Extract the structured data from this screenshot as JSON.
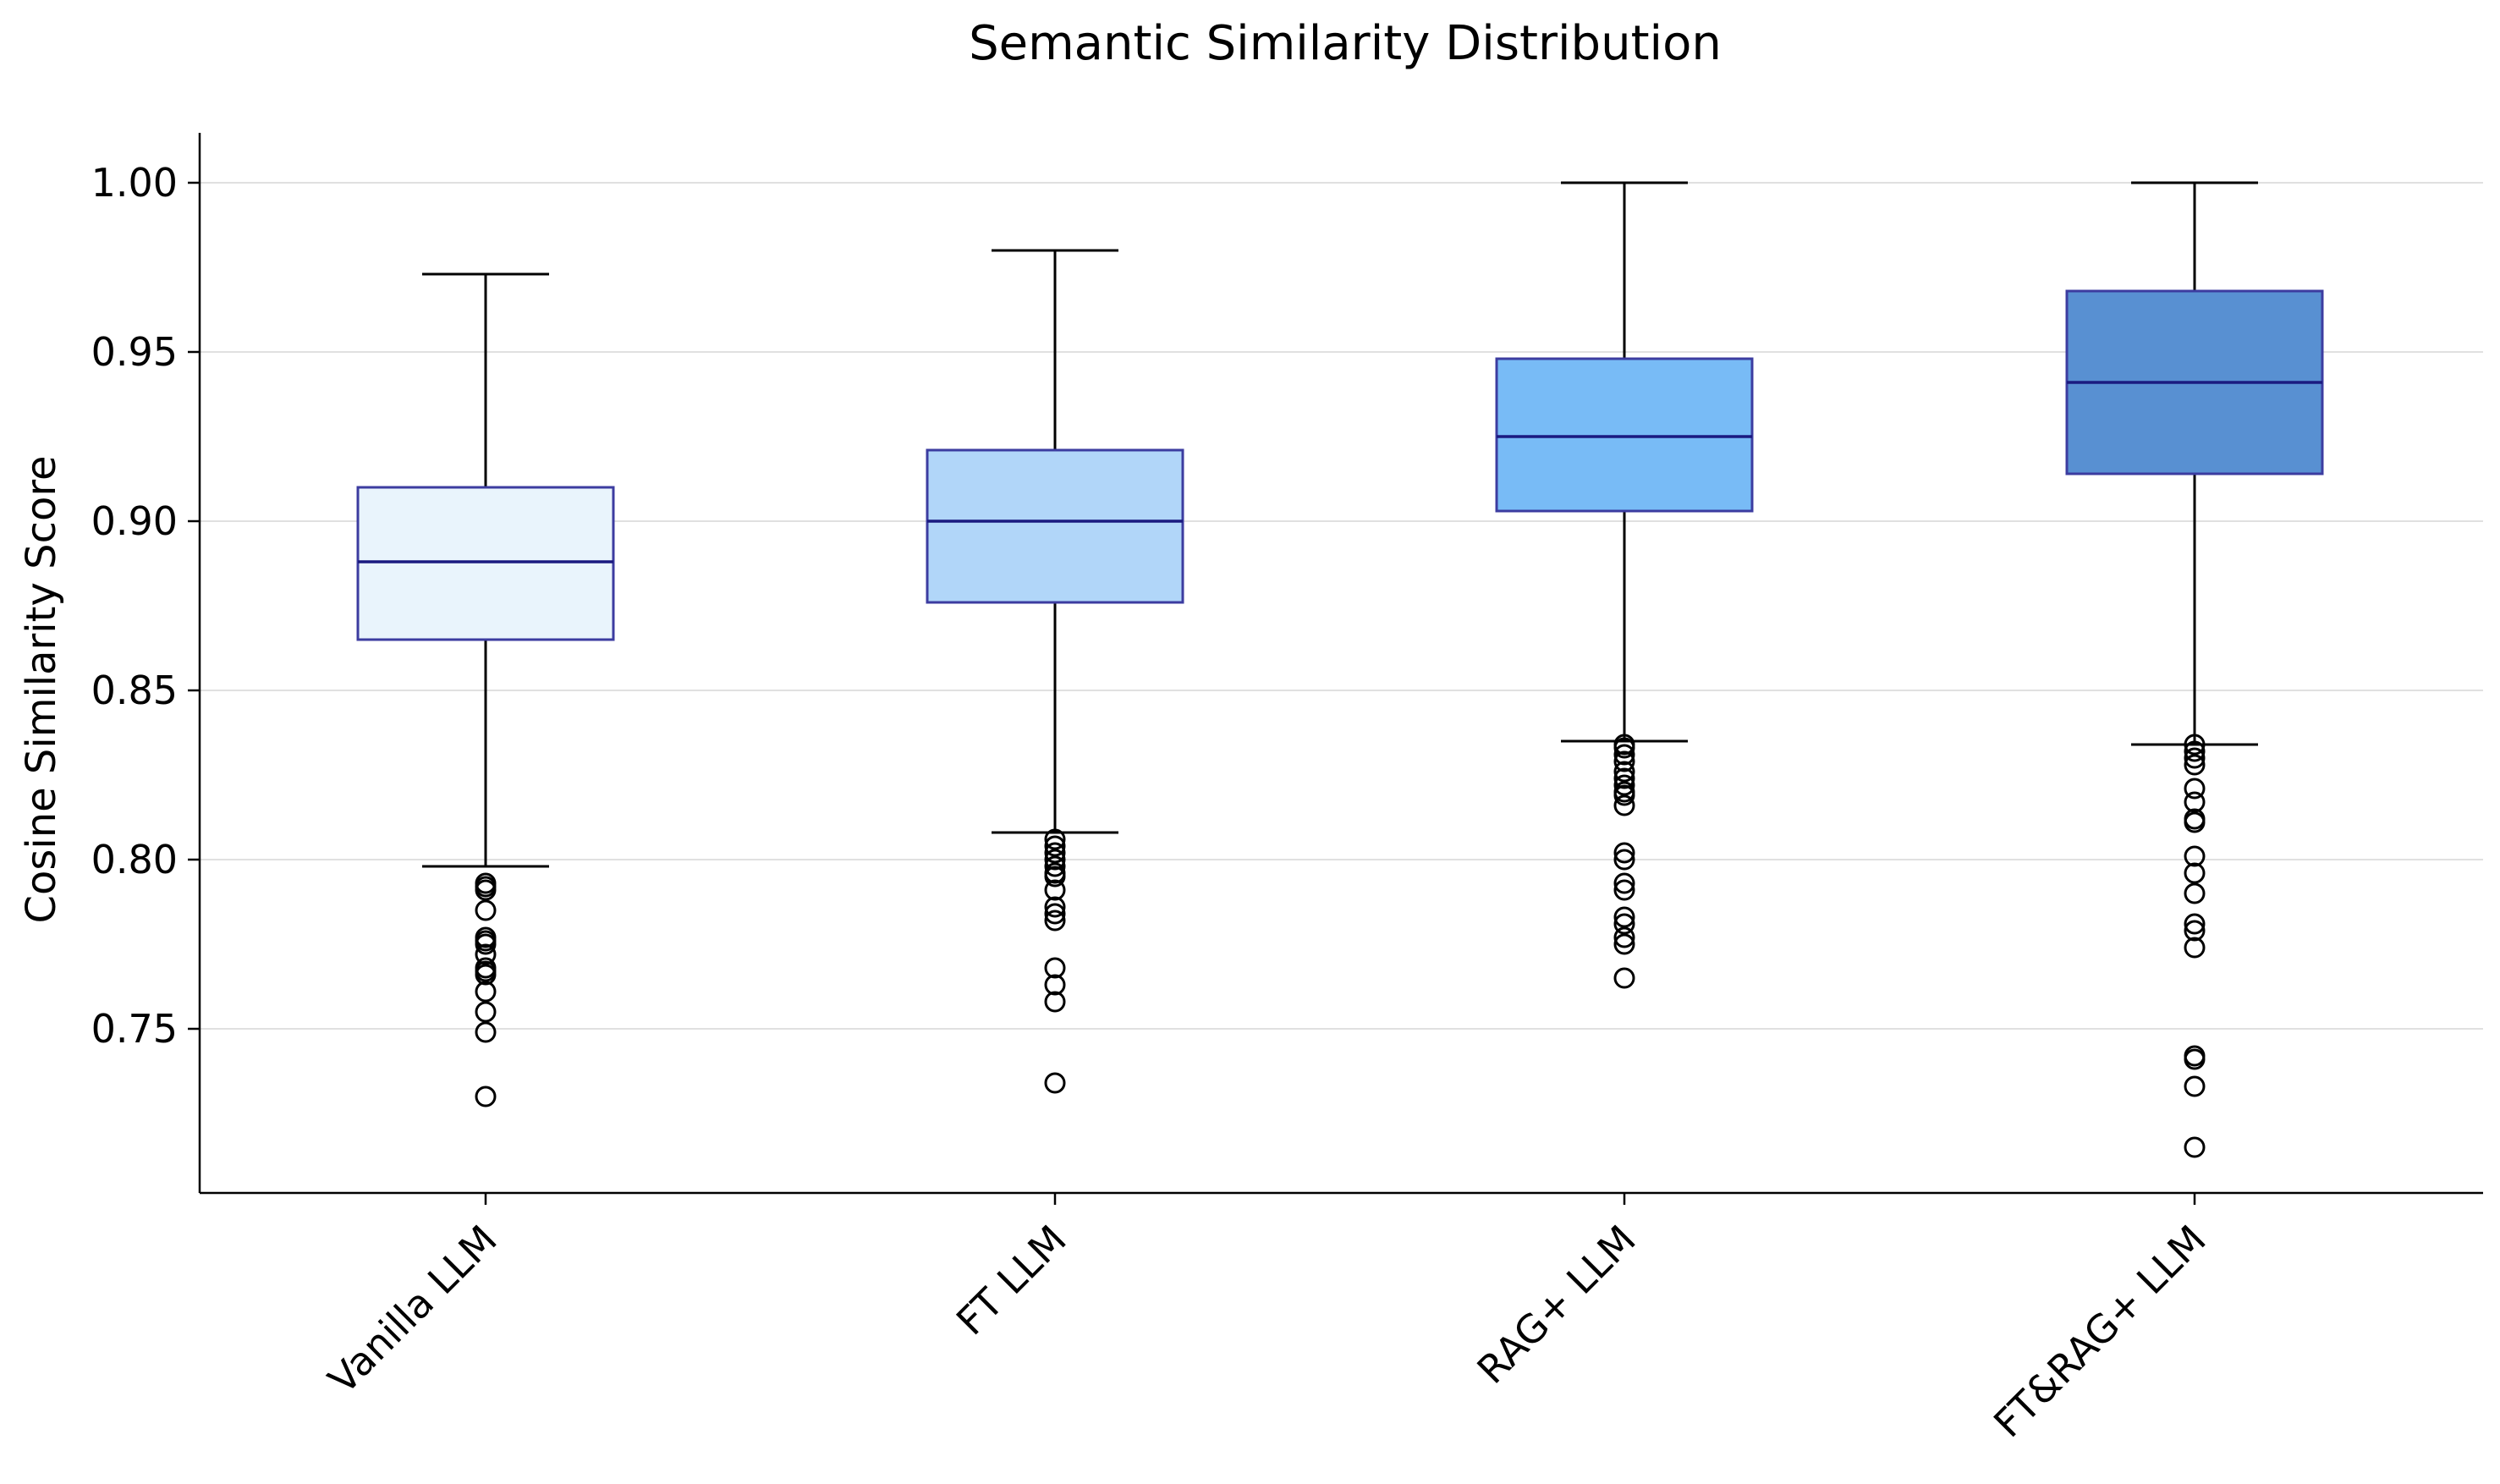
{
  "chart_data": {
    "type": "box",
    "title": "Semantic Similarity Distribution",
    "xlabel": "",
    "ylabel": "Cosine Similarity Score",
    "ylim": [
      0.701,
      1.015
    ],
    "yticks": [
      0.75,
      0.8,
      0.85,
      0.9,
      0.95,
      1.0
    ],
    "ytick_labels": [
      "0.75",
      "0.80",
      "0.85",
      "0.90",
      "0.95",
      "1.00"
    ],
    "grid": "horizontal",
    "categories": [
      "Vanilla LLM",
      "FT LLM",
      "RAG+ LLM",
      "FT&RAG+ LLM"
    ],
    "box_colors": [
      "#e9f4fc",
      "#b1d6f9",
      "#78bbf6",
      "#5890d2"
    ],
    "box_edge_color": "#3c3ca0",
    "median_color": "#1a1a80",
    "boxes": [
      {
        "whisker_low": 0.798,
        "q1": 0.865,
        "median": 0.888,
        "q3": 0.91,
        "whisker_high": 0.973,
        "outliers": [
          0.793,
          0.792,
          0.791,
          0.785,
          0.777,
          0.776,
          0.775,
          0.772,
          0.768,
          0.767,
          0.766,
          0.761,
          0.755,
          0.749,
          0.73
        ]
      },
      {
        "whisker_low": 0.808,
        "q1": 0.876,
        "median": 0.9,
        "q3": 0.921,
        "whisker_high": 0.98,
        "outliers": [
          0.806,
          0.804,
          0.802,
          0.8,
          0.798,
          0.796,
          0.795,
          0.791,
          0.786,
          0.784,
          0.782,
          0.768,
          0.763,
          0.758,
          0.734
        ]
      },
      {
        "whisker_low": 0.835,
        "q1": 0.903,
        "median": 0.925,
        "q3": 0.948,
        "whisker_high": 1.0,
        "outliers": [
          0.834,
          0.833,
          0.831,
          0.829,
          0.826,
          0.824,
          0.822,
          0.82,
          0.819,
          0.816,
          0.802,
          0.8,
          0.793,
          0.791,
          0.783,
          0.781,
          0.777,
          0.775,
          0.765
        ]
      },
      {
        "whisker_low": 0.834,
        "q1": 0.914,
        "median": 0.941,
        "q3": 0.968,
        "whisker_high": 1.0,
        "outliers": [
          0.834,
          0.832,
          0.83,
          0.828,
          0.821,
          0.817,
          0.812,
          0.811,
          0.801,
          0.796,
          0.79,
          0.781,
          0.779,
          0.774,
          0.742,
          0.741,
          0.733,
          0.715
        ]
      }
    ]
  }
}
